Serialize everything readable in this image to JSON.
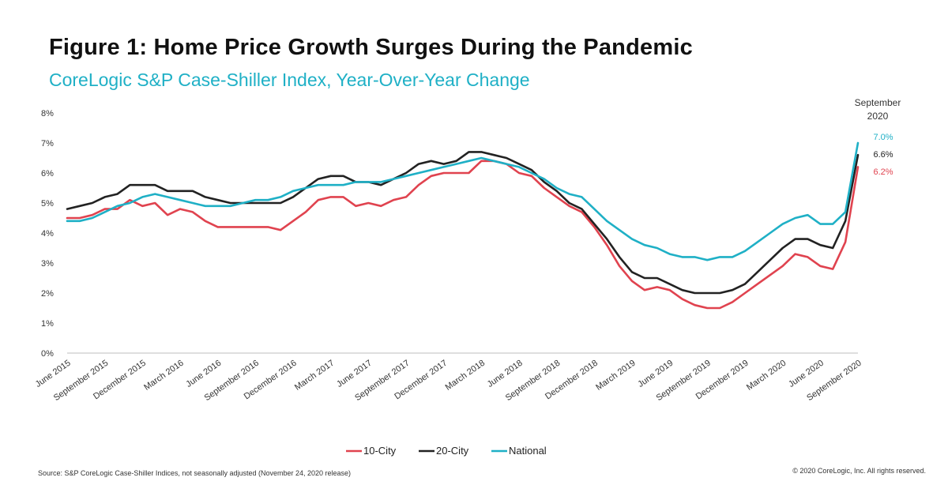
{
  "title": "Figure 1: Home Price Growth Surges During the Pandemic",
  "subtitle": "CoreLogic S&P Case-Shiller Index, Year-Over-Year Change",
  "source": "Source: S&P CoreLogic Case-Shiller Indices, not seasonally adjusted (November 24, 2020 release)",
  "copyright": "© 2020 CoreLogic, Inc. All rights reserved.",
  "annotation": {
    "line1": "September",
    "line2": "2020",
    "values": [
      {
        "label": "7.0%",
        "color": "#1fb0c6"
      },
      {
        "label": "6.6%",
        "color": "#222222"
      },
      {
        "label": "6.2%",
        "color": "#e0434f"
      }
    ]
  },
  "chart_data": {
    "type": "line",
    "ylim": [
      0,
      8
    ],
    "yticks": [
      "0%",
      "1%",
      "2%",
      "3%",
      "4%",
      "5%",
      "6%",
      "7%",
      "8%"
    ],
    "xtick_labels": [
      "June 2015",
      "September 2015",
      "December 2015",
      "March 2016",
      "June 2016",
      "September 2016",
      "December 2016",
      "March 2017",
      "June 2017",
      "September 2017",
      "December 2017",
      "March 2018",
      "June 2018",
      "September 2018",
      "December 2018",
      "March 2019",
      "June 2019",
      "September 2019",
      "December 2019",
      "March 2020",
      "June 2020",
      "September 2020"
    ],
    "x": [
      "Jun 2015",
      "Jul 2015",
      "Aug 2015",
      "Sep 2015",
      "Oct 2015",
      "Nov 2015",
      "Dec 2015",
      "Jan 2016",
      "Feb 2016",
      "Mar 2016",
      "Apr 2016",
      "May 2016",
      "Jun 2016",
      "Jul 2016",
      "Aug 2016",
      "Sep 2016",
      "Oct 2016",
      "Nov 2016",
      "Dec 2016",
      "Jan 2017",
      "Feb 2017",
      "Mar 2017",
      "Apr 2017",
      "May 2017",
      "Jun 2017",
      "Jul 2017",
      "Aug 2017",
      "Sep 2017",
      "Oct 2017",
      "Nov 2017",
      "Dec 2017",
      "Jan 2018",
      "Feb 2018",
      "Mar 2018",
      "Apr 2018",
      "May 2018",
      "Jun 2018",
      "Jul 2018",
      "Aug 2018",
      "Sep 2018",
      "Oct 2018",
      "Nov 2018",
      "Dec 2018",
      "Jan 2019",
      "Feb 2019",
      "Mar 2019",
      "Apr 2019",
      "May 2019",
      "Jun 2019",
      "Jul 2019",
      "Aug 2019",
      "Sep 2019",
      "Oct 2019",
      "Nov 2019",
      "Dec 2019",
      "Jan 2020",
      "Feb 2020",
      "Mar 2020",
      "Apr 2020",
      "May 2020",
      "Jun 2020",
      "Jul 2020",
      "Aug 2020",
      "Sep 2020"
    ],
    "series": [
      {
        "name": "10-City",
        "color": "#e0434f",
        "values": [
          4.5,
          4.5,
          4.6,
          4.8,
          4.8,
          5.1,
          4.9,
          5.0,
          4.6,
          4.8,
          4.7,
          4.4,
          4.2,
          4.2,
          4.2,
          4.2,
          4.2,
          4.1,
          4.4,
          4.7,
          5.1,
          5.2,
          5.2,
          4.9,
          5.0,
          4.9,
          5.1,
          5.2,
          5.6,
          5.9,
          6.0,
          6.0,
          6.0,
          6.4,
          6.4,
          6.3,
          6.0,
          5.9,
          5.5,
          5.2,
          4.9,
          4.7,
          4.2,
          3.6,
          2.9,
          2.4,
          2.1,
          2.2,
          2.1,
          1.8,
          1.6,
          1.5,
          1.5,
          1.7,
          2.0,
          2.3,
          2.6,
          2.9,
          3.3,
          3.2,
          2.9,
          2.8,
          3.7,
          6.2
        ]
      },
      {
        "name": "20-City",
        "color": "#222222",
        "values": [
          4.8,
          4.9,
          5.0,
          5.2,
          5.3,
          5.6,
          5.6,
          5.6,
          5.4,
          5.4,
          5.4,
          5.2,
          5.1,
          5.0,
          5.0,
          5.0,
          5.0,
          5.0,
          5.2,
          5.5,
          5.8,
          5.9,
          5.9,
          5.7,
          5.7,
          5.6,
          5.8,
          6.0,
          6.3,
          6.4,
          6.3,
          6.4,
          6.7,
          6.7,
          6.6,
          6.5,
          6.3,
          6.1,
          5.7,
          5.4,
          5.0,
          4.8,
          4.3,
          3.8,
          3.2,
          2.7,
          2.5,
          2.5,
          2.3,
          2.1,
          2.0,
          2.0,
          2.0,
          2.1,
          2.3,
          2.7,
          3.1,
          3.5,
          3.8,
          3.8,
          3.6,
          3.5,
          4.4,
          6.6
        ]
      },
      {
        "name": "National",
        "color": "#1fb0c6",
        "values": [
          4.4,
          4.4,
          4.5,
          4.7,
          4.9,
          5.0,
          5.2,
          5.3,
          5.2,
          5.1,
          5.0,
          4.9,
          4.9,
          4.9,
          5.0,
          5.1,
          5.1,
          5.2,
          5.4,
          5.5,
          5.6,
          5.6,
          5.6,
          5.7,
          5.7,
          5.7,
          5.8,
          5.9,
          6.0,
          6.1,
          6.2,
          6.3,
          6.4,
          6.5,
          6.4,
          6.3,
          6.2,
          6.0,
          5.8,
          5.5,
          5.3,
          5.2,
          4.8,
          4.4,
          4.1,
          3.8,
          3.6,
          3.5,
          3.3,
          3.2,
          3.2,
          3.1,
          3.2,
          3.2,
          3.4,
          3.7,
          4.0,
          4.3,
          4.5,
          4.6,
          4.3,
          4.3,
          4.7,
          7.0
        ]
      }
    ],
    "legend": "bottom-center",
    "grid": false
  }
}
